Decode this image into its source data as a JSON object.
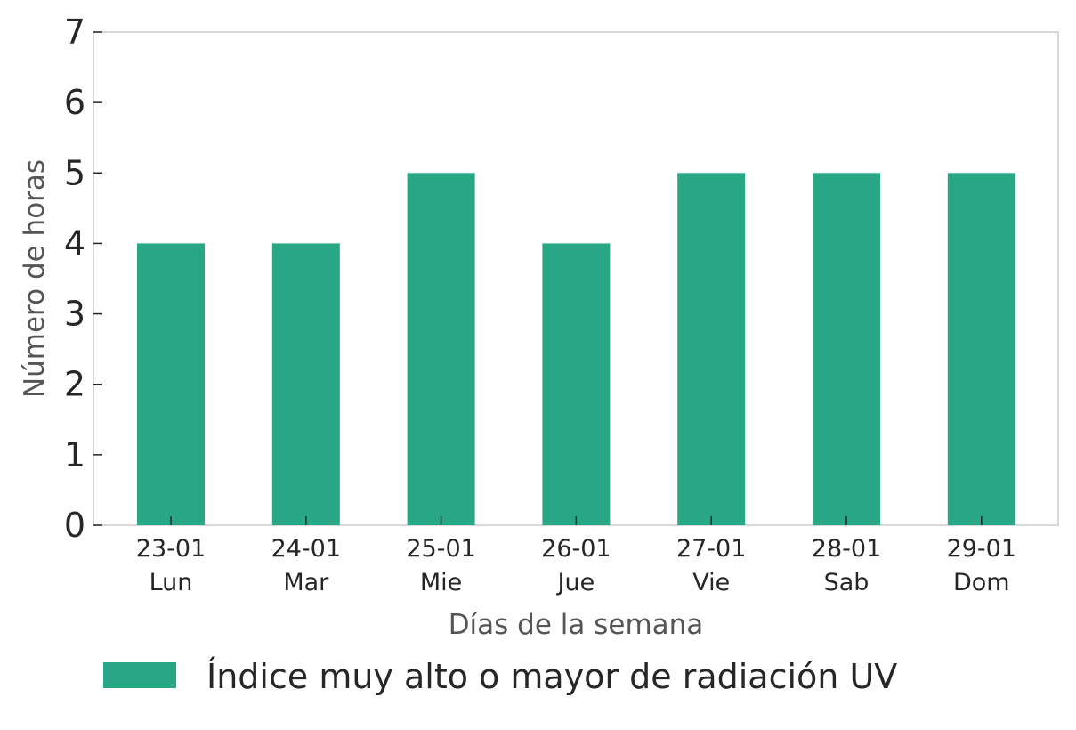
{
  "chart_data": {
    "type": "bar",
    "categories": [
      "23-01|Lun",
      "24-01|Mar",
      "25-01|Mie",
      "26-01|Jue",
      "27-01|Vie",
      "28-01|Sab",
      "29-01|Dom"
    ],
    "category_lines": [
      [
        "23-01",
        "Lun"
      ],
      [
        "24-01",
        "Mar"
      ],
      [
        "25-01",
        "Mie"
      ],
      [
        "26-01",
        "Jue"
      ],
      [
        "27-01",
        "Vie"
      ],
      [
        "28-01",
        "Sab"
      ],
      [
        "29-01",
        "Dom"
      ]
    ],
    "series": [
      {
        "name": "Índice muy alto o mayor de radiación UV",
        "color": "#29a685",
        "values": [
          4,
          4,
          5,
          4,
          5,
          5,
          5
        ]
      }
    ],
    "xlabel": "Días de la semana",
    "ylabel": "Número de horas",
    "ylim": [
      0,
      7
    ],
    "yticks": [
      "0",
      "1",
      "2",
      "3",
      "4",
      "5",
      "6",
      "7"
    ],
    "grid": false,
    "legend_position": "bottom-left"
  }
}
